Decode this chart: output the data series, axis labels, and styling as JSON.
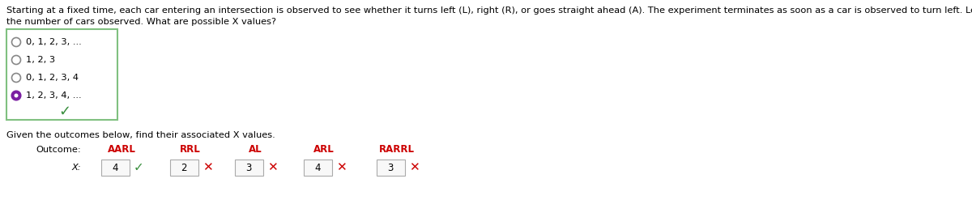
{
  "bg_color": "#ffffff",
  "text_color": "#000000",
  "red_color": "#cc0000",
  "green_color": "#4caf50",
  "green_dark": "#388e3c",
  "purple_color": "#7b1fa2",
  "header_text": "Starting at a fixed time, each car entering an intersection is observed to see whether it turns left (L), right (R), or goes straight ahead (A). The experiment terminates as soon as a car is observed to turn left. Let X =",
  "header_text2": "the number of cars observed. What are possible X values?",
  "radio_options": [
    "0, 1, 2, 3, ...",
    "1, 2, 3",
    "0, 1, 2, 3, 4",
    "1, 2, 3, 4, ..."
  ],
  "selected_option": 3,
  "second_part_label": "Given the outcomes below, find their associated X values.",
  "outcome_label": "Outcome:",
  "x_label": "X:",
  "outcomes": [
    "AARL",
    "RRL",
    "AL",
    "ARL",
    "RARRL"
  ],
  "x_values": [
    "4",
    "2",
    "3",
    "4",
    "3"
  ],
  "x_correct": [
    true,
    false,
    false,
    false,
    false
  ]
}
